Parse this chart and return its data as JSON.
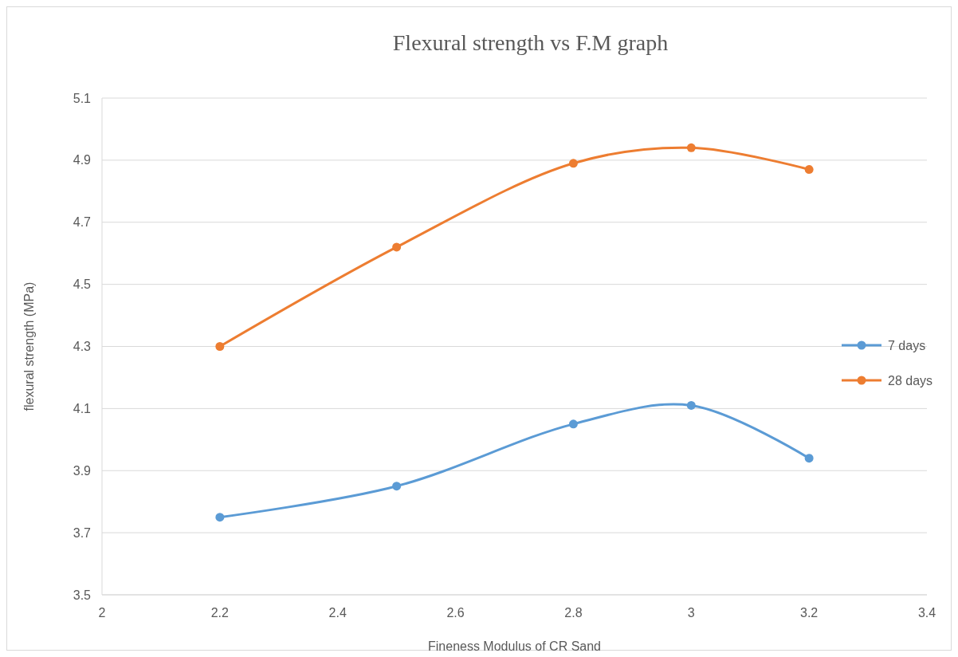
{
  "chart_data": {
    "type": "line",
    "title": "Flexural strength vs F.M graph",
    "xlabel": "Fineness Modulus of CR Sand",
    "ylabel": "flexural strength (MPa)",
    "x": [
      2.2,
      2.5,
      2.8,
      3.0,
      3.2
    ],
    "series": [
      {
        "name": "7 days",
        "color": "#5b9bd5",
        "values": [
          3.75,
          3.85,
          4.05,
          4.11,
          3.94
        ]
      },
      {
        "name": "28 days",
        "color": "#ed7d31",
        "values": [
          4.3,
          4.62,
          4.89,
          4.94,
          4.87
        ]
      }
    ],
    "xlim": [
      2,
      3.4
    ],
    "xticks": [
      2,
      2.2,
      2.4,
      2.6,
      2.8,
      3,
      3.2,
      3.4
    ],
    "ylim": [
      3.5,
      5.1
    ],
    "yticks": [
      3.5,
      3.7,
      3.9,
      4.1,
      4.3,
      4.5,
      4.7,
      4.9,
      5.1
    ],
    "grid": "y",
    "legend": "right",
    "marker": "circle",
    "line_style": "solid"
  }
}
